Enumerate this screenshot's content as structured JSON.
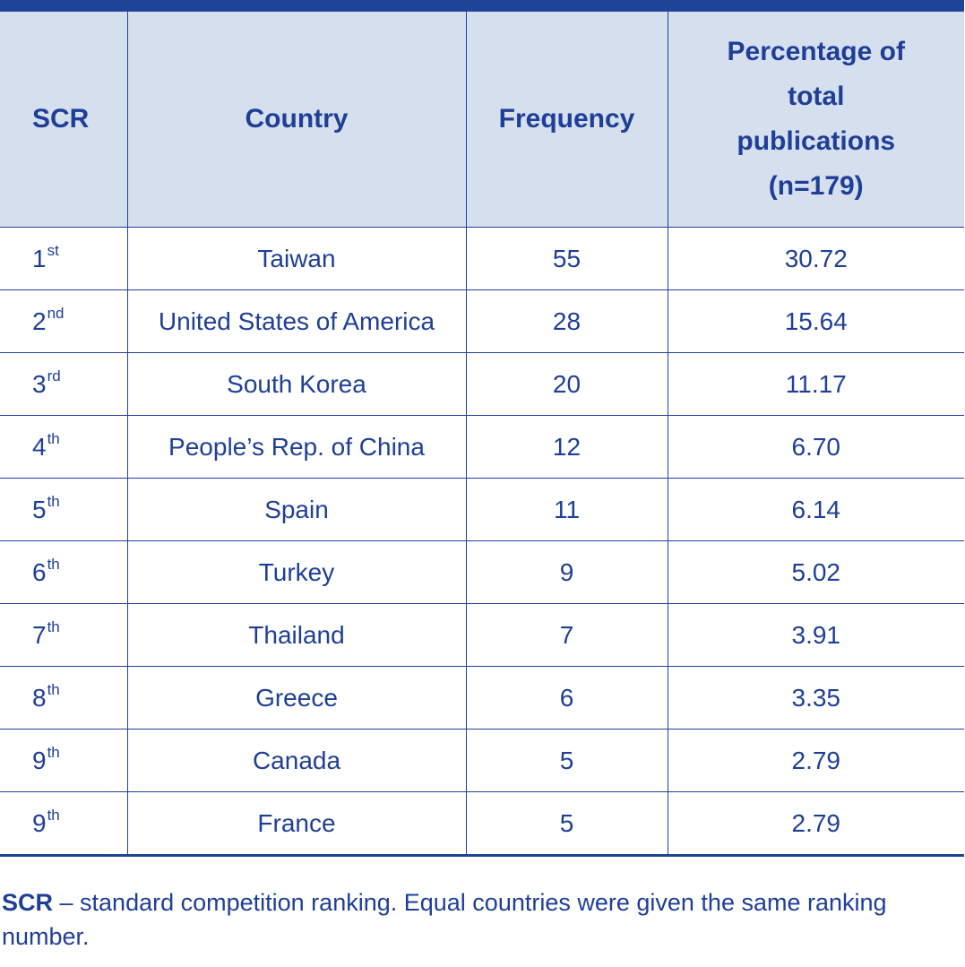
{
  "table": {
    "headers": {
      "scr": "SCR",
      "country": "Country",
      "frequency": "Frequency",
      "percentage": "Percentage of total publications (n=179)"
    },
    "rows": [
      {
        "rank": "1",
        "suffix": "st",
        "country": "Taiwan",
        "frequency": "55",
        "percentage": "30.72"
      },
      {
        "rank": "2",
        "suffix": "nd",
        "country": "United States of America",
        "frequency": "28",
        "percentage": "15.64"
      },
      {
        "rank": "3",
        "suffix": "rd",
        "country": "South Korea",
        "frequency": "20",
        "percentage": "11.17"
      },
      {
        "rank": "4",
        "suffix": "th",
        "country": "People’s Rep. of China",
        "frequency": "12",
        "percentage": "6.70"
      },
      {
        "rank": "5",
        "suffix": "th",
        "country": "Spain",
        "frequency": "11",
        "percentage": "6.14"
      },
      {
        "rank": "6",
        "suffix": "th",
        "country": "Turkey",
        "frequency": "9",
        "percentage": "5.02"
      },
      {
        "rank": "7",
        "suffix": "th",
        "country": "Thailand",
        "frequency": "7",
        "percentage": "3.91"
      },
      {
        "rank": "8",
        "suffix": "th",
        "country": "Greece",
        "frequency": "6",
        "percentage": "3.35"
      },
      {
        "rank": "9",
        "suffix": "th",
        "country": "Canada",
        "frequency": "5",
        "percentage": "2.79"
      },
      {
        "rank": "9",
        "suffix": "th",
        "country": "France",
        "frequency": "5",
        "percentage": "2.79"
      }
    ]
  },
  "footnote": {
    "term": "SCR",
    "text": " – standard competition ranking. Equal countries were given the same ranking number."
  },
  "colors": {
    "text": "#1f3f97",
    "header_bg": "#d6dfee",
    "rule": "#1f4397"
  }
}
